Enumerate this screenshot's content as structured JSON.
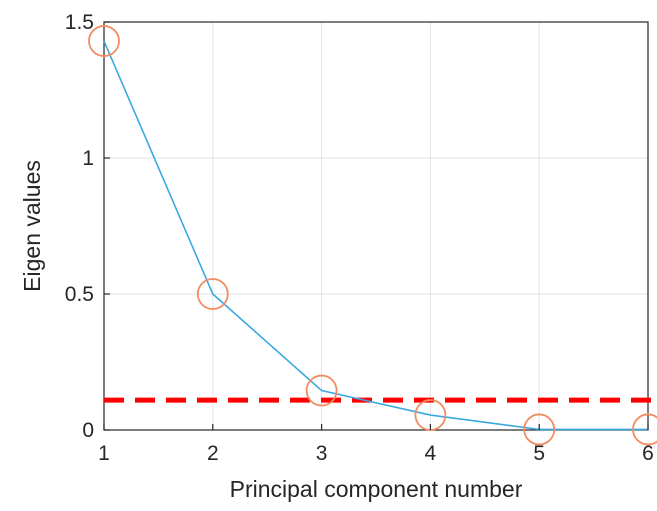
{
  "chart_data": {
    "type": "line",
    "title": "",
    "xlabel": "Principal component number",
    "ylabel": "Eigen values",
    "xlim": [
      1,
      6
    ],
    "ylim": [
      0,
      1.5
    ],
    "xticks": [
      "1",
      "2",
      "3",
      "4",
      "5",
      "6"
    ],
    "yticks": [
      "0",
      "0.5",
      "1",
      "1.5"
    ],
    "grid": true,
    "series": [
      {
        "x": [
          1,
          2,
          3,
          4,
          5,
          6
        ],
        "values": [
          1.43,
          0.5,
          0.145,
          0.055,
          0.002,
          0.002
        ],
        "color": "#3aa9e0",
        "marker": "circle",
        "marker_color": "#f28c62"
      }
    ],
    "reference_lines": [
      {
        "orientation": "horizontal",
        "y": 0.11,
        "style": "dashed",
        "color": "#ff0000"
      }
    ]
  }
}
